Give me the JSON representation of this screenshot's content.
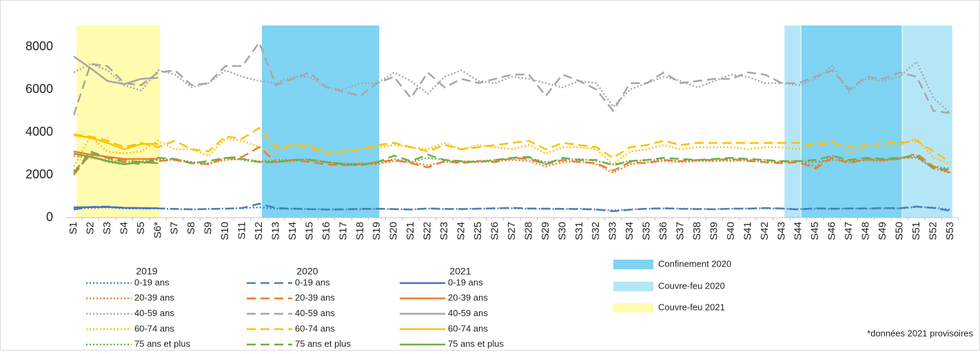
{
  "chart_data": {
    "type": "line",
    "categories": [
      "S1",
      "S2",
      "S3",
      "S4",
      "S5",
      "S6*",
      "S7",
      "S8",
      "S9",
      "S10",
      "S11",
      "S12",
      "S13",
      "S14",
      "S15",
      "S16",
      "S17",
      "S18",
      "S19",
      "S20",
      "S21",
      "S22",
      "S23",
      "S24",
      "S25",
      "S26",
      "S27",
      "S28",
      "S29",
      "S30",
      "S31",
      "S32",
      "S33",
      "S34",
      "S35",
      "S36",
      "S37",
      "S38",
      "S39",
      "S40",
      "S41",
      "S42",
      "S43",
      "S44",
      "S45",
      "S46",
      "S47",
      "S48",
      "S49",
      "S50",
      "S51",
      "S52",
      "S53"
    ],
    "ylim": [
      0,
      9000
    ],
    "yticks": [
      0,
      2000,
      4000,
      6000,
      8000
    ],
    "bands": [
      {
        "name": "Couvre-feu 2021",
        "color": "#fffcb0",
        "from": "S1",
        "to": "S6*"
      },
      {
        "name": "Confinement 2020",
        "color": "#7fd3f3",
        "from": "S12",
        "to": "S19"
      },
      {
        "name": "Couvre-feu 2020",
        "color": "#b5e6f8",
        "from": "S43",
        "to": "S44"
      },
      {
        "from": "S44",
        "to": "S50",
        "color": "#7fd3f3"
      },
      {
        "from": "S50",
        "to": "S53",
        "color": "#b5e6f8"
      }
    ],
    "groups": [
      {
        "title": "2019",
        "style": "dotted",
        "series": [
          {
            "name": "0-19 ans",
            "color": "#4a7ebb",
            "values": [
              420,
              450,
              480,
              430,
              420,
              430,
              400,
              380,
              410,
              420,
              450,
              480,
              420,
              410,
              400,
              390,
              380,
              400,
              410,
              400,
              390,
              420,
              400,
              410,
              420,
              430,
              440,
              420,
              410,
              400,
              420,
              390,
              340,
              380,
              410,
              430,
              420,
              410,
              400,
              420,
              430,
              440,
              420,
              400,
              420,
              410,
              430,
              420,
              440,
              430,
              500,
              470,
              380
            ]
          },
          {
            "name": "20-39 ans",
            "color": "#ed7d31",
            "values": [
              2900,
              2800,
              2700,
              2600,
              2650,
              2700,
              2750,
              2600,
              2550,
              2700,
              2750,
              2650,
              2600,
              2650,
              2700,
              2600,
              2500,
              2550,
              2500,
              2650,
              2600,
              2450,
              2600,
              2650,
              2600,
              2650,
              2700,
              2650,
              2400,
              2600,
              2650,
              2500,
              2100,
              2500,
              2600,
              2650,
              2600,
              2650,
              2700,
              2650,
              2700,
              2600,
              2600,
              2650,
              2400,
              2900,
              2600,
              2700,
              2650,
              2800,
              2850,
              2300,
              2100
            ]
          },
          {
            "name": "40-59 ans",
            "color": "#a5a5a5",
            "values": [
              6800,
              7200,
              6900,
              6200,
              5950,
              6900,
              6700,
              6100,
              6300,
              6900,
              6600,
              6400,
              6300,
              6600,
              6600,
              6100,
              6000,
              6300,
              6300,
              6800,
              6400,
              5800,
              6600,
              6900,
              6400,
              6300,
              6600,
              6500,
              6300,
              6100,
              6400,
              6300,
              5200,
              6000,
              6300,
              6600,
              6400,
              6100,
              6400,
              6700,
              6600,
              6300,
              6300,
              6200,
              6500,
              7100,
              5900,
              6500,
              6400,
              6600,
              7300,
              5600,
              4900
            ]
          },
          {
            "name": "60-74 ans",
            "color": "#ffc000",
            "values": [
              2400,
              3800,
              3100,
              3000,
              3100,
              3600,
              3200,
              3200,
              2900,
              3700,
              3600,
              3300,
              3100,
              3400,
              3400,
              3100,
              3100,
              3200,
              3300,
              3400,
              3300,
              3200,
              3500,
              3200,
              3400,
              3300,
              3200,
              3400,
              3000,
              3300,
              3300,
              3200,
              2500,
              3100,
              3200,
              3400,
              3200,
              3300,
              3300,
              3300,
              3200,
              3300,
              3300,
              3200,
              3500,
              3600,
              3000,
              3300,
              3300,
              3400,
              3700,
              2800,
              2500
            ]
          },
          {
            "name": "75 ans et plus",
            "color": "#70ad47",
            "values": [
              2200,
              2900,
              2600,
              2500,
              2600,
              2700,
              2700,
              2600,
              2500,
              2800,
              2700,
              2600,
              2700,
              2700,
              2750,
              2600,
              2550,
              2500,
              2550,
              2750,
              2600,
              2800,
              2700,
              2600,
              2650,
              2700,
              2750,
              2800,
              2600,
              2700,
              2750,
              2650,
              2500,
              2650,
              2700,
              2700,
              2650,
              2650,
              2650,
              2700,
              2700,
              2700,
              2600,
              2650,
              2600,
              2700,
              2650,
              2700,
              2700,
              2800,
              2800,
              2400,
              2300
            ]
          }
        ]
      },
      {
        "title": "2020",
        "style": "dashed",
        "series": [
          {
            "name": "0-19 ans",
            "color": "#4a7ebb",
            "values": [
              380,
              500,
              520,
              460,
              440,
              430,
              410,
              390,
              400,
              420,
              450,
              650,
              450,
              420,
              400,
              380,
              390,
              410,
              420,
              400,
              380,
              430,
              410,
              400,
              420,
              440,
              460,
              430,
              420,
              410,
              400,
              380,
              300,
              370,
              420,
              440,
              410,
              400,
              390,
              420,
              420,
              450,
              430,
              380,
              440,
              420,
              430,
              430,
              450,
              440,
              520,
              450,
              320
            ]
          },
          {
            "name": "20-39 ans",
            "color": "#ed7d31",
            "values": [
              2000,
              3000,
              2800,
              2700,
              2600,
              2650,
              2700,
              2550,
              2500,
              2800,
              2850,
              3300,
              2600,
              2700,
              2600,
              2500,
              2450,
              2500,
              2600,
              2700,
              2550,
              2350,
              2650,
              2550,
              2650,
              2600,
              2800,
              2750,
              2500,
              2700,
              2600,
              2550,
              2200,
              2600,
              2550,
              2700,
              2650,
              2700,
              2700,
              2750,
              2650,
              2600,
              2550,
              2600,
              2300,
              2800,
              2550,
              2750,
              2700,
              2750,
              3000,
              2400,
              2100
            ]
          },
          {
            "name": "40-59 ans",
            "color": "#a5a5a5",
            "values": [
              4800,
              7200,
              7100,
              6300,
              6200,
              6800,
              6900,
              6200,
              6300,
              7100,
              7100,
              8200,
              6200,
              6500,
              6800,
              6100,
              5900,
              5700,
              6300,
              6600,
              5600,
              6800,
              6100,
              6500,
              6300,
              6500,
              6700,
              6700,
              5700,
              6700,
              6400,
              6000,
              5000,
              6300,
              6300,
              6800,
              6300,
              6400,
              6500,
              6500,
              6800,
              6700,
              6300,
              6300,
              6600,
              6900,
              6000,
              6600,
              6500,
              6800,
              6600,
              5000,
              4900
            ]
          },
          {
            "name": "60-74 ans",
            "color": "#ffc000",
            "values": [
              3900,
              3800,
              3600,
              3300,
              3500,
              3300,
              3600,
              3200,
              3100,
              3800,
              3700,
              4200,
              3300,
              3400,
              3300,
              3000,
              3100,
              3200,
              3400,
              3500,
              3300,
              3100,
              3400,
              3200,
              3300,
              3400,
              3500,
              3600,
              3200,
              3500,
              3400,
              3300,
              2800,
              3300,
              3400,
              3600,
              3400,
              3500,
              3500,
              3500,
              3500,
              3500,
              3500,
              3500,
              3400,
              3500,
              3300,
              3400,
              3500,
              3500,
              3600,
              3100,
              2600
            ]
          },
          {
            "name": "75 ans et plus",
            "color": "#70ad47",
            "values": [
              2100,
              3100,
              2800,
              2600,
              2500,
              2800,
              2750,
              2550,
              2650,
              2800,
              2750,
              2600,
              2600,
              2700,
              2700,
              2600,
              2500,
              2450,
              2600,
              2900,
              2650,
              2950,
              2700,
              2650,
              2600,
              2700,
              2800,
              2850,
              2500,
              2800,
              2700,
              2700,
              2450,
              2650,
              2700,
              2800,
              2750,
              2700,
              2750,
              2800,
              2750,
              2700,
              2650,
              2650,
              2700,
              2900,
              2700,
              2800,
              2750,
              2800,
              2900,
              2300,
              2250
            ]
          }
        ]
      },
      {
        "title": "2021",
        "style": "solid",
        "series": [
          {
            "name": "0-19 ans",
            "color": "#4472c4",
            "values": [
              480,
              490,
              500,
              460,
              450,
              440
            ]
          },
          {
            "name": "20-39 ans",
            "color": "#ed7d31",
            "values": [
              3100,
              2950,
              2850,
              2750,
              2750,
              2750
            ]
          },
          {
            "name": "40-59 ans",
            "color": "#a5a5a5",
            "values": [
              7550,
              7000,
              6400,
              6250,
              6500,
              6550
            ]
          },
          {
            "name": "60-74 ans",
            "color": "#ffc000",
            "values": [
              3850,
              3750,
              3500,
              3200,
              3450,
              3450
            ]
          },
          {
            "name": "75 ans et plus",
            "color": "#70ad47",
            "values": [
              3000,
              2850,
              2650,
              2500,
              2600,
              2550
            ]
          }
        ]
      }
    ],
    "annotation": "*données 2021 provisoires"
  }
}
